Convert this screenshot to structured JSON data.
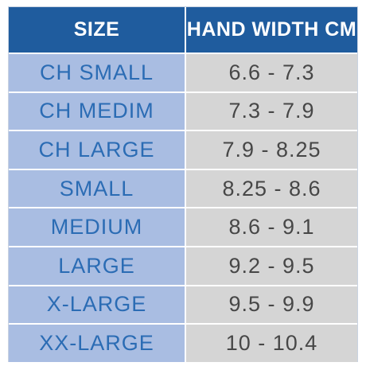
{
  "table": {
    "header": [
      "SIZE",
      "HAND WIDTH CM"
    ],
    "rows": [
      [
        "CH SMALL",
        "6.6 - 7.3"
      ],
      [
        "CH MEDIM",
        "7.3 - 7.9"
      ],
      [
        "CH LARGE",
        "7.9 - 8.25"
      ],
      [
        "SMALL",
        "8.25 - 8.6"
      ],
      [
        "MEDIUM",
        "8.6 - 9.1"
      ],
      [
        "LARGE",
        "9.2 - 9.5"
      ],
      [
        "X-LARGE",
        "9.5 - 9.9"
      ],
      [
        "XX-LARGE",
        "10 - 10.4"
      ]
    ]
  }
}
